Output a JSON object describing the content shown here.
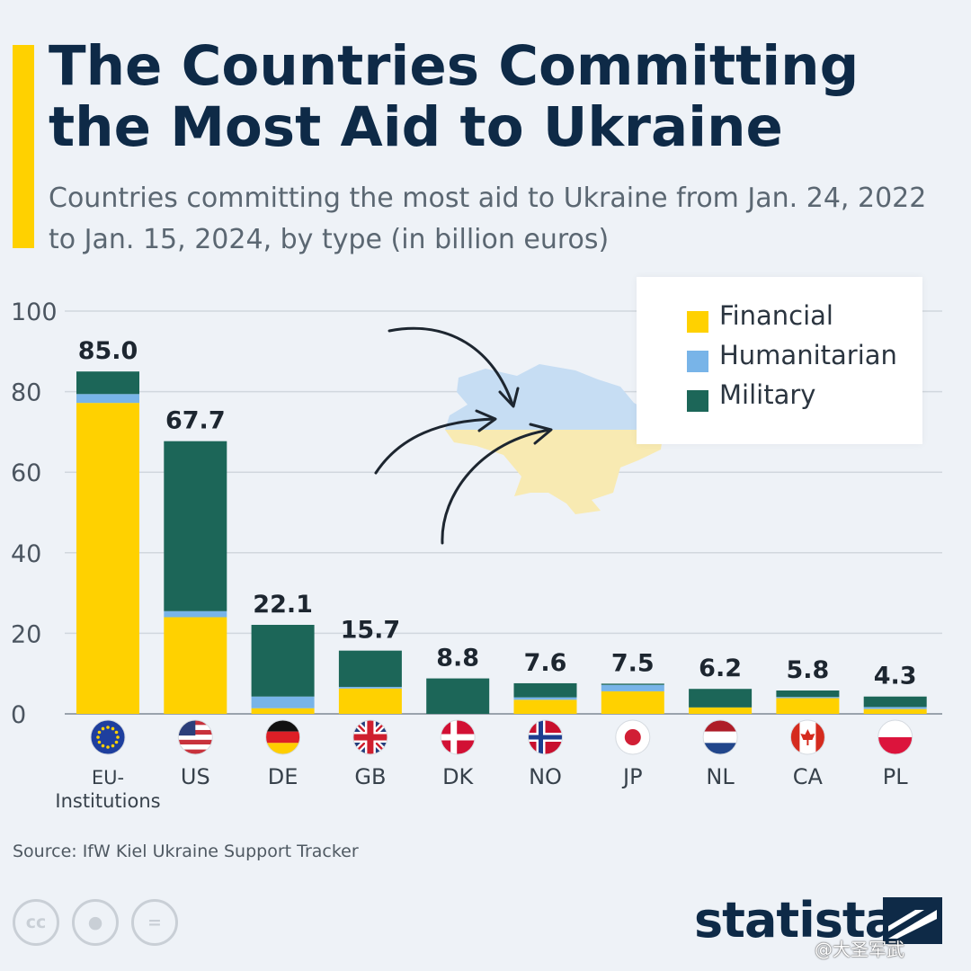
{
  "title": "The Countries Committing the Most Aid to Ukraine",
  "subtitle": "Countries committing the most aid to Ukraine from Jan. 24, 2022 to Jan. 15, 2024, by type (in billion euros)",
  "colors": {
    "accent": "#ffd100",
    "financial": "#ffd100",
    "humanitarian": "#78b4e8",
    "military": "#1c6658",
    "title": "#0e2a47",
    "map_blue": "#c6ddf3",
    "map_yellow": "#f8eab2"
  },
  "legend": [
    {
      "key": "financial",
      "label": "Financial"
    },
    {
      "key": "humanitarian",
      "label": "Humanitarian"
    },
    {
      "key": "military",
      "label": "Military"
    }
  ],
  "source": "Source: IfW Kiel Ukraine Support Tracker",
  "license_icons": [
    "creative-commons-icon",
    "attribution-icon",
    "no-derivatives-icon"
  ],
  "brand": {
    "name": "statista"
  },
  "watermark": "@大圣军武",
  "chart_data": {
    "type": "bar",
    "stacked": true,
    "title": "The Countries Committing the Most Aid to Ukraine",
    "ylabel": "",
    "xlabel": "",
    "ylim": [
      0,
      100
    ],
    "yticks": [
      0,
      20,
      40,
      60,
      80,
      100
    ],
    "grid": true,
    "legend_position": "top-right",
    "categories": [
      "EU-Institutions",
      "US",
      "DE",
      "GB",
      "DK",
      "NO",
      "JP",
      "NL",
      "CA",
      "PL"
    ],
    "category_labels": [
      [
        "EU-",
        "Institutions"
      ],
      [
        "US"
      ],
      [
        "DE"
      ],
      [
        "GB"
      ],
      [
        "DK"
      ],
      [
        "NO"
      ],
      [
        "JP"
      ],
      [
        "NL"
      ],
      [
        "CA"
      ],
      [
        "PL"
      ]
    ],
    "flags": [
      "eu-flag-icon",
      "us-flag-icon",
      "de-flag-icon",
      "gb-flag-icon",
      "dk-flag-icon",
      "no-flag-icon",
      "jp-flag-icon",
      "nl-flag-icon",
      "ca-flag-icon",
      "pl-flag-icon"
    ],
    "totals": [
      85.0,
      67.7,
      22.1,
      15.7,
      8.8,
      7.6,
      7.5,
      6.2,
      5.8,
      4.3
    ],
    "total_labels": [
      "85.0",
      "67.7",
      "22.1",
      "15.7",
      "8.8",
      "7.6",
      "7.5",
      "6.2",
      "5.8",
      "4.3"
    ],
    "series": [
      {
        "name": "Financial",
        "key": "financial",
        "values": [
          77.2,
          24.0,
          1.4,
          6.3,
          0.0,
          3.5,
          5.6,
          1.6,
          3.9,
          1.2
        ]
      },
      {
        "name": "Humanitarian",
        "key": "humanitarian",
        "values": [
          2.2,
          1.5,
          2.9,
          0.4,
          0.0,
          0.6,
          1.6,
          0.0,
          0.3,
          0.5
        ]
      },
      {
        "name": "Military",
        "key": "military",
        "values": [
          5.6,
          42.2,
          17.8,
          9.0,
          8.8,
          3.5,
          0.3,
          4.6,
          1.6,
          2.6
        ]
      }
    ]
  }
}
